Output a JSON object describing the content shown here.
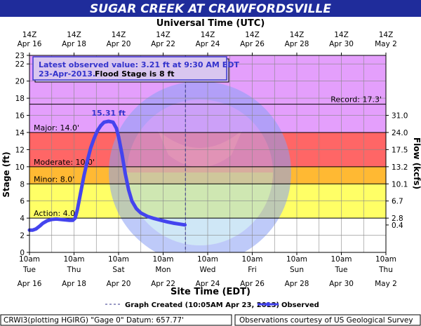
{
  "chart_data": {
    "type": "line",
    "title": "SUGAR CREEK AT CRAWFORDSVILLE",
    "top_axis_title": "Universal Time (UTC)",
    "xlabel": "Site Time (EDT)",
    "ylabel": "Stage (ft)",
    "y2label": "Flow (kcfs)",
    "top_ticks": [
      {
        "l1": "14Z",
        "l2": "Apr 16"
      },
      {
        "l1": "14Z",
        "l2": "Apr 18"
      },
      {
        "l1": "14Z",
        "l2": "Apr 20"
      },
      {
        "l1": "14Z",
        "l2": "Apr 22"
      },
      {
        "l1": "14Z",
        "l2": "Apr 24"
      },
      {
        "l1": "14Z",
        "l2": "Apr 26"
      },
      {
        "l1": "14Z",
        "l2": "Apr 28"
      },
      {
        "l1": "14Z",
        "l2": "Apr 30"
      },
      {
        "l1": "14Z",
        "l2": "May  2"
      }
    ],
    "bottom_ticks": [
      {
        "l1": "10am",
        "l2": "Tue",
        "l3": "Apr 16"
      },
      {
        "l1": "10am",
        "l2": "Thu",
        "l3": "Apr 18"
      },
      {
        "l1": "10am",
        "l2": "Sat",
        "l3": "Apr 20"
      },
      {
        "l1": "10am",
        "l2": "Mon",
        "l3": "Apr 22"
      },
      {
        "l1": "10am",
        "l2": "Wed",
        "l3": "Apr 24"
      },
      {
        "l1": "10am",
        "l2": "Fri",
        "l3": "Apr 26"
      },
      {
        "l1": "10am",
        "l2": "Sun",
        "l3": "Apr 28"
      },
      {
        "l1": "10am",
        "l2": "Tue",
        "l3": "Apr 30"
      },
      {
        "l1": "10am",
        "l2": "Thu",
        "l3": "May 2"
      }
    ],
    "xlim_days": [
      0,
      16
    ],
    "ylim": [
      0,
      23
    ],
    "y_ticks": [
      0,
      2,
      4,
      6,
      8,
      10,
      12,
      14,
      16,
      18,
      20,
      22,
      23
    ],
    "y2_ticks": [
      {
        "stage": 3.2,
        "label": "0.4"
      },
      {
        "stage": 4.0,
        "label": "2.8"
      },
      {
        "stage": 6.0,
        "label": "6.7"
      },
      {
        "stage": 8.0,
        "label": "10.1"
      },
      {
        "stage": 10.0,
        "label": "13.2"
      },
      {
        "stage": 12.0,
        "label": "17.5"
      },
      {
        "stage": 14.0,
        "label": "24.0"
      },
      {
        "stage": 16.0,
        "label": "31.0"
      }
    ],
    "zones": [
      {
        "from": 0,
        "to": 4,
        "color": "#ffffff"
      },
      {
        "from": 4,
        "to": 8,
        "color": "#ffff66"
      },
      {
        "from": 8,
        "to": 10,
        "color": "#ffb933"
      },
      {
        "from": 10,
        "to": 14,
        "color": "#ff6666"
      },
      {
        "from": 14,
        "to": 23,
        "color": "#e49ffc"
      }
    ],
    "thresholds": [
      {
        "value": 17.3,
        "label": "Record: 17.3'",
        "align": "right"
      },
      {
        "value": 14.0,
        "label": "Major: 14.0'",
        "align": "left"
      },
      {
        "value": 10.0,
        "label": "Moderate: 10.0'",
        "align": "left"
      },
      {
        "value": 8.0,
        "label": "Minor: 8.0'",
        "align": "left"
      },
      {
        "value": 4.0,
        "label": "Action: 4.0'",
        "align": "left"
      }
    ],
    "info_box": {
      "line1": "Latest observed value: 3.21 ft at 9:30 AM EDT",
      "line2a": "23-Apr-2013.",
      "line2b": "Flood Stage is 8 ft"
    },
    "peak_label": "15.31 ft",
    "peak": {
      "x": 3.55,
      "y": 15.31
    },
    "graph_created_x": 7.0,
    "series": [
      {
        "name": "Observed",
        "color": "#4444ee",
        "points": [
          [
            0.0,
            2.6
          ],
          [
            0.15,
            2.6
          ],
          [
            0.3,
            2.75
          ],
          [
            0.45,
            3.05
          ],
          [
            0.6,
            3.4
          ],
          [
            0.8,
            3.7
          ],
          [
            1.0,
            3.85
          ],
          [
            1.2,
            3.9
          ],
          [
            1.4,
            3.85
          ],
          [
            1.6,
            3.8
          ],
          [
            1.8,
            3.75
          ],
          [
            1.95,
            3.75
          ],
          [
            2.05,
            4.0
          ],
          [
            2.15,
            5.0
          ],
          [
            2.3,
            7.0
          ],
          [
            2.45,
            9.0
          ],
          [
            2.6,
            10.7
          ],
          [
            2.75,
            12.2
          ],
          [
            2.9,
            13.3
          ],
          [
            3.05,
            14.2
          ],
          [
            3.2,
            14.8
          ],
          [
            3.35,
            15.2
          ],
          [
            3.55,
            15.31
          ],
          [
            3.75,
            15.2
          ],
          [
            3.9,
            14.5
          ],
          [
            4.0,
            13.5
          ],
          [
            4.15,
            11.5
          ],
          [
            4.3,
            9.2
          ],
          [
            4.45,
            7.3
          ],
          [
            4.6,
            6.0
          ],
          [
            4.8,
            5.1
          ],
          [
            5.0,
            4.6
          ],
          [
            5.3,
            4.2
          ],
          [
            5.6,
            3.95
          ],
          [
            5.9,
            3.75
          ],
          [
            6.2,
            3.55
          ],
          [
            6.5,
            3.4
          ],
          [
            6.75,
            3.3
          ],
          [
            6.98,
            3.21
          ]
        ]
      }
    ],
    "legend": {
      "graph_created": "Graph Created (10:05AM Apr 23, 2013)",
      "observed": "Observed"
    }
  },
  "footer": {
    "left": "CRWI3(plotting HGIRG) \"Gage 0\" Datum: 657.77'",
    "right": "Observations courtesy of US Geological Survey"
  },
  "colors": {
    "title_bar": "#1f2c9b",
    "zone_blue": "#8aa0f5"
  }
}
